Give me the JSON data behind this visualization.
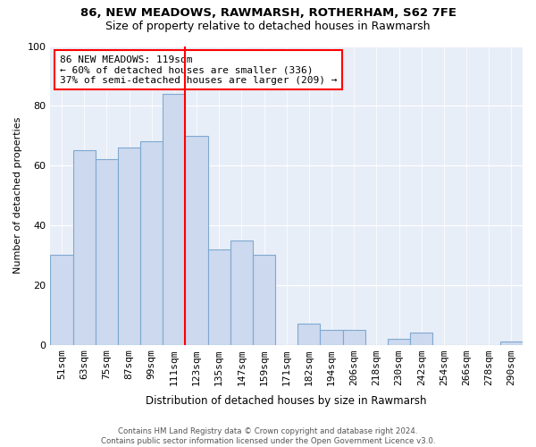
{
  "title1": "86, NEW MEADOWS, RAWMARSH, ROTHERHAM, S62 7FE",
  "title2": "Size of property relative to detached houses in Rawmarsh",
  "xlabel": "Distribution of detached houses by size in Rawmarsh",
  "ylabel": "Number of detached properties",
  "bar_labels": [
    "51sqm",
    "63sqm",
    "75sqm",
    "87sqm",
    "99sqm",
    "111sqm",
    "123sqm",
    "135sqm",
    "147sqm",
    "159sqm",
    "171sqm",
    "182sqm",
    "194sqm",
    "206sqm",
    "218sqm",
    "230sqm",
    "242sqm",
    "254sqm",
    "266sqm",
    "278sqm",
    "290sqm"
  ],
  "bar_values": [
    30,
    65,
    62,
    66,
    68,
    84,
    70,
    32,
    35,
    30,
    0,
    7,
    5,
    5,
    0,
    2,
    4,
    0,
    0,
    0,
    1
  ],
  "bar_color": "#ccd9ee",
  "bar_edge_color": "#7fa8d0",
  "vline_color": "red",
  "annotation_title": "86 NEW MEADOWS: 119sqm",
  "annotation_line1": "← 60% of detached houses are smaller (336)",
  "annotation_line2": "37% of semi-detached houses are larger (209) →",
  "ylim": [
    0,
    100
  ],
  "yticks": [
    0,
    20,
    40,
    60,
    80,
    100
  ],
  "bg_color": "#e8eef8",
  "footer1": "Contains HM Land Registry data © Crown copyright and database right 2024.",
  "footer2": "Contains public sector information licensed under the Open Government Licence v3.0."
}
